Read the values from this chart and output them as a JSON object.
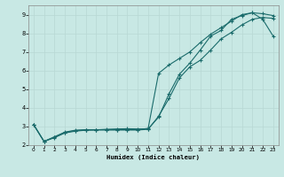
{
  "xlabel": "Humidex (Indice chaleur)",
  "xlim": [
    -0.5,
    23.5
  ],
  "ylim": [
    2.0,
    9.5
  ],
  "xticks": [
    0,
    1,
    2,
    3,
    4,
    5,
    6,
    7,
    8,
    9,
    10,
    11,
    12,
    13,
    14,
    15,
    16,
    17,
    18,
    19,
    20,
    21,
    22,
    23
  ],
  "yticks": [
    2,
    3,
    4,
    5,
    6,
    7,
    8,
    9
  ],
  "bg_color": "#c8e8e4",
  "grid_color": "#b0d4d0",
  "line_color": "#1a6b6b",
  "line1_x": [
    0,
    1,
    2,
    3,
    4,
    5,
    6,
    7,
    8,
    9,
    10,
    11,
    12,
    13,
    14,
    15,
    16,
    17,
    18,
    19,
    20,
    21,
    22,
    23
  ],
  "line1_y": [
    3.1,
    2.2,
    2.4,
    2.65,
    2.75,
    2.8,
    2.82,
    2.85,
    2.87,
    2.88,
    2.87,
    2.87,
    3.5,
    4.75,
    5.8,
    6.4,
    7.1,
    7.85,
    8.15,
    8.75,
    8.95,
    9.1,
    8.75,
    7.85
  ],
  "line2_x": [
    0,
    1,
    2,
    3,
    4,
    5,
    6,
    7,
    8,
    9,
    10,
    11,
    12,
    13,
    14,
    15,
    16,
    17,
    18,
    19,
    20,
    21,
    22,
    23
  ],
  "line2_y": [
    3.1,
    2.2,
    2.45,
    2.7,
    2.8,
    2.83,
    2.83,
    2.83,
    2.83,
    2.83,
    2.83,
    2.9,
    5.85,
    6.3,
    6.65,
    7.0,
    7.5,
    7.95,
    8.3,
    8.65,
    9.0,
    9.1,
    9.05,
    8.95
  ],
  "line3_x": [
    0,
    1,
    2,
    3,
    4,
    5,
    6,
    7,
    8,
    9,
    10,
    11,
    12,
    13,
    14,
    15,
    16,
    17,
    18,
    19,
    20,
    21,
    22,
    23
  ],
  "line3_y": [
    3.1,
    2.2,
    2.42,
    2.68,
    2.78,
    2.81,
    2.81,
    2.81,
    2.81,
    2.81,
    2.81,
    2.85,
    3.55,
    4.5,
    5.6,
    6.2,
    6.55,
    7.1,
    7.7,
    8.05,
    8.45,
    8.75,
    8.85,
    8.8
  ]
}
